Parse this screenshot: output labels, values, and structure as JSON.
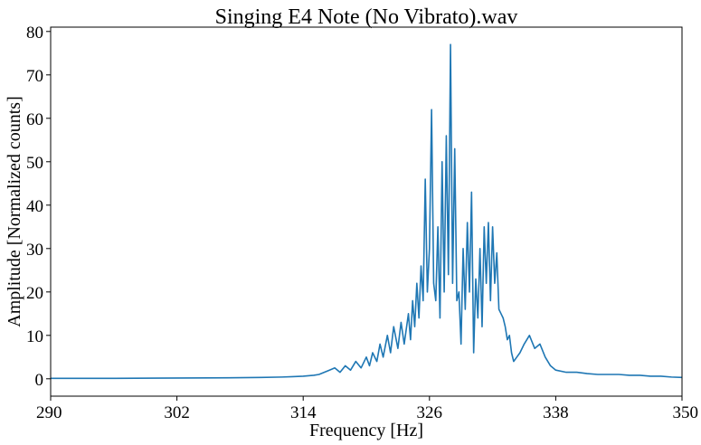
{
  "chart_data": {
    "type": "line",
    "title": "Singing E4 Note (No Vibrato).wav",
    "xlabel": "Frequency [Hz]",
    "ylabel": "Amplitude [Normalized counts]",
    "xlim": [
      290,
      350
    ],
    "ylim": [
      -4,
      81
    ],
    "xticks": [
      290,
      302,
      314,
      326,
      338,
      350
    ],
    "yticks": [
      0,
      10,
      20,
      30,
      40,
      50,
      60,
      70,
      80
    ],
    "grid": false,
    "legend": "none",
    "colors": {
      "series": "#1f77b4",
      "axes": "#000000",
      "background": "#ffffff"
    },
    "series": [
      {
        "x": [
          290,
          295,
          300,
          305,
          310,
          312,
          313,
          314,
          314.5,
          315,
          315.5,
          316,
          316.5,
          317,
          317.5,
          318,
          318.5,
          319,
          319.5,
          320,
          320.3,
          320.6,
          321,
          321.3,
          321.6,
          322,
          322.3,
          322.6,
          323,
          323.3,
          323.6,
          324,
          324.2,
          324.4,
          324.6,
          324.8,
          325.0,
          325.2,
          325.4,
          325.6,
          325.8,
          326.0,
          326.2,
          326.4,
          326.6,
          326.8,
          327.0,
          327.2,
          327.4,
          327.6,
          327.8,
          328.0,
          328.2,
          328.4,
          328.6,
          328.8,
          329.0,
          329.2,
          329.4,
          329.6,
          329.8,
          330.0,
          330.2,
          330.4,
          330.6,
          330.8,
          331.0,
          331.2,
          331.4,
          331.6,
          331.8,
          332.0,
          332.2,
          332.4,
          332.6,
          332.8,
          333.0,
          333.2,
          333.4,
          333.6,
          333.8,
          334.0,
          334.3,
          334.6,
          335.0,
          335.5,
          336.0,
          336.5,
          337.0,
          337.5,
          338.0,
          339,
          340,
          341,
          342,
          343,
          344,
          345,
          346,
          347,
          348,
          349,
          350
        ],
        "y": [
          0.1,
          0.1,
          0.15,
          0.2,
          0.3,
          0.4,
          0.5,
          0.6,
          0.7,
          0.8,
          1,
          1.5,
          2,
          2.5,
          1.5,
          3,
          2,
          4,
          2.5,
          5,
          3,
          6,
          4,
          8,
          5,
          10,
          6,
          12,
          7,
          13,
          8,
          15,
          9,
          18,
          12,
          22,
          14,
          26,
          18,
          46,
          20,
          30,
          62,
          22,
          18,
          35,
          14,
          50,
          20,
          56,
          24,
          77,
          22,
          53,
          18,
          20,
          8,
          30,
          16,
          36,
          20,
          43,
          6,
          23,
          14,
          30,
          12,
          35,
          22,
          36,
          18,
          35,
          22,
          29,
          16,
          15,
          14,
          12,
          9,
          10,
          6,
          4,
          5,
          6,
          8,
          10,
          7,
          8,
          5,
          3,
          2,
          1.5,
          1.5,
          1.2,
          1.0,
          1.0,
          1.0,
          0.8,
          0.8,
          0.6,
          0.6,
          0.4,
          0.3
        ]
      }
    ]
  }
}
